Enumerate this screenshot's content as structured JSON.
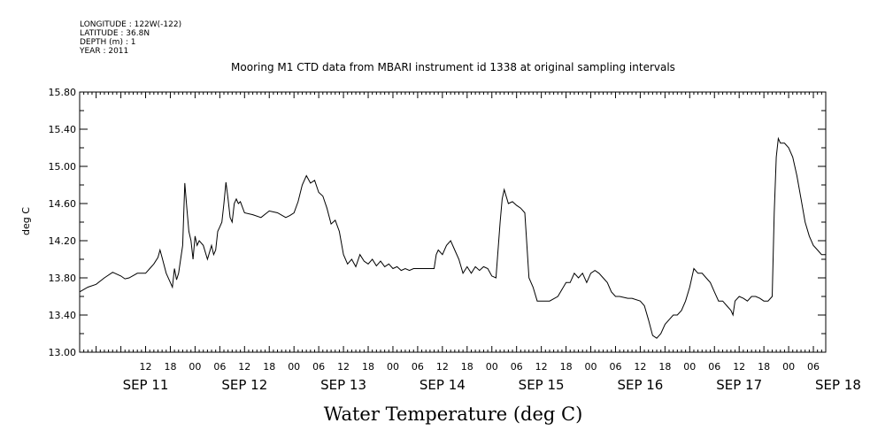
{
  "header": {
    "longitude": "LONGITUDE : 122W(-122)",
    "latitude": "LATITUDE : 36.8N",
    "depth": "DEPTH (m) : 1",
    "year": "YEAR : 2011"
  },
  "chart_data": {
    "type": "line",
    "title": "Mooring M1 CTD data from MBARI instrument id 1338 at original sampling intervals",
    "ylabel": "deg C",
    "xlabel": "Water Temperature (deg C)",
    "ylim": [
      13.0,
      15.8
    ],
    "xlim_hours": [
      -16,
      165
    ],
    "y_ticks": [
      "13.00",
      "13.40",
      "13.80",
      "14.20",
      "14.60",
      "15.00",
      "15.40",
      "15.80"
    ],
    "x_hour_labels": [
      "12",
      "18",
      "00",
      "06",
      "12",
      "18",
      "00",
      "06",
      "12",
      "18",
      "00",
      "06",
      "12",
      "18",
      "00",
      "06",
      "12",
      "18",
      "00",
      "06",
      "12",
      "18",
      "00",
      "06",
      "12",
      "18",
      "00",
      "06"
    ],
    "x_day_labels": [
      "SEP 11",
      "SEP 12",
      "SEP 13",
      "SEP 14",
      "SEP 15",
      "SEP 16",
      "SEP 17",
      "SEP 18"
    ],
    "x_time_origin": "2011-09-11 12:00",
    "grid": false,
    "series": [
      {
        "points": [
          [
            -16,
            13.65
          ],
          [
            -14,
            13.7
          ],
          [
            -12,
            13.73
          ],
          [
            -10,
            13.8
          ],
          [
            -8,
            13.86
          ],
          [
            -6,
            13.82
          ],
          [
            -5,
            13.79
          ],
          [
            -4,
            13.8
          ],
          [
            -2,
            13.85
          ],
          [
            0,
            13.85
          ],
          [
            1,
            13.9
          ],
          [
            2,
            13.95
          ],
          [
            3,
            14.02
          ],
          [
            3.5,
            14.1
          ],
          [
            4,
            14.02
          ],
          [
            5,
            13.85
          ],
          [
            6,
            13.75
          ],
          [
            6.5,
            13.7
          ],
          [
            7,
            13.9
          ],
          [
            7.5,
            13.78
          ],
          [
            8,
            13.85
          ],
          [
            8.5,
            14.0
          ],
          [
            9,
            14.15
          ],
          [
            9.5,
            14.82
          ],
          [
            10,
            14.55
          ],
          [
            10.5,
            14.3
          ],
          [
            11,
            14.2
          ],
          [
            11.5,
            14.0
          ],
          [
            12,
            14.25
          ],
          [
            12.5,
            14.15
          ],
          [
            13,
            14.2
          ],
          [
            14,
            14.15
          ],
          [
            15,
            14.0
          ],
          [
            16,
            14.15
          ],
          [
            16.5,
            14.05
          ],
          [
            17,
            14.1
          ],
          [
            17.5,
            14.3
          ],
          [
            18,
            14.35
          ],
          [
            18.5,
            14.4
          ],
          [
            19,
            14.6
          ],
          [
            19.5,
            14.83
          ],
          [
            20,
            14.65
          ],
          [
            20.5,
            14.45
          ],
          [
            21,
            14.4
          ],
          [
            21.5,
            14.6
          ],
          [
            22,
            14.65
          ],
          [
            22.5,
            14.6
          ],
          [
            23,
            14.62
          ],
          [
            24,
            14.5
          ],
          [
            26,
            14.48
          ],
          [
            28,
            14.45
          ],
          [
            30,
            14.52
          ],
          [
            32,
            14.5
          ],
          [
            34,
            14.45
          ],
          [
            35,
            14.47
          ],
          [
            36,
            14.5
          ],
          [
            37,
            14.62
          ],
          [
            38,
            14.8
          ],
          [
            39,
            14.9
          ],
          [
            40,
            14.82
          ],
          [
            41,
            14.85
          ],
          [
            42,
            14.72
          ],
          [
            43,
            14.68
          ],
          [
            44,
            14.55
          ],
          [
            45,
            14.38
          ],
          [
            46,
            14.42
          ],
          [
            47,
            14.3
          ],
          [
            48,
            14.05
          ],
          [
            49,
            13.95
          ],
          [
            50,
            14.0
          ],
          [
            51,
            13.92
          ],
          [
            52,
            14.05
          ],
          [
            53,
            13.98
          ],
          [
            54,
            13.95
          ],
          [
            55,
            14.0
          ],
          [
            56,
            13.93
          ],
          [
            57,
            13.98
          ],
          [
            58,
            13.92
          ],
          [
            59,
            13.95
          ],
          [
            60,
            13.9
          ],
          [
            61,
            13.92
          ],
          [
            62,
            13.88
          ],
          [
            63,
            13.9
          ],
          [
            64,
            13.88
          ],
          [
            65,
            13.9
          ],
          [
            67,
            13.9
          ],
          [
            69,
            13.9
          ],
          [
            70,
            13.9
          ],
          [
            70.5,
            14.05
          ],
          [
            71,
            14.1
          ],
          [
            72,
            14.05
          ],
          [
            73,
            14.15
          ],
          [
            74,
            14.2
          ],
          [
            75,
            14.1
          ],
          [
            76,
            14.0
          ],
          [
            77,
            13.85
          ],
          [
            78,
            13.92
          ],
          [
            79,
            13.85
          ],
          [
            80,
            13.92
          ],
          [
            81,
            13.88
          ],
          [
            82,
            13.92
          ],
          [
            83,
            13.9
          ],
          [
            84,
            13.82
          ],
          [
            85,
            13.8
          ],
          [
            86,
            14.4
          ],
          [
            86.5,
            14.65
          ],
          [
            87,
            14.75
          ],
          [
            88,
            14.6
          ],
          [
            89,
            14.62
          ],
          [
            90,
            14.58
          ],
          [
            91,
            14.55
          ],
          [
            92,
            14.5
          ],
          [
            93,
            13.8
          ],
          [
            94,
            13.7
          ],
          [
            95,
            13.55
          ],
          [
            96,
            13.55
          ],
          [
            98,
            13.55
          ],
          [
            100,
            13.6
          ],
          [
            102,
            13.75
          ],
          [
            103,
            13.75
          ],
          [
            104,
            13.85
          ],
          [
            105,
            13.8
          ],
          [
            106,
            13.85
          ],
          [
            107,
            13.75
          ],
          [
            108,
            13.85
          ],
          [
            109,
            13.88
          ],
          [
            110,
            13.85
          ],
          [
            111,
            13.8
          ],
          [
            112,
            13.75
          ],
          [
            113,
            13.65
          ],
          [
            114,
            13.6
          ],
          [
            115,
            13.6
          ],
          [
            117,
            13.58
          ],
          [
            118,
            13.58
          ],
          [
            120,
            13.55
          ],
          [
            121,
            13.5
          ],
          [
            122,
            13.35
          ],
          [
            123,
            13.18
          ],
          [
            124,
            13.15
          ],
          [
            125,
            13.2
          ],
          [
            126,
            13.3
          ],
          [
            127,
            13.35
          ],
          [
            128,
            13.4
          ],
          [
            129,
            13.4
          ],
          [
            130,
            13.45
          ],
          [
            131,
            13.55
          ],
          [
            132,
            13.7
          ],
          [
            133,
            13.9
          ],
          [
            134,
            13.85
          ],
          [
            135,
            13.85
          ],
          [
            136,
            13.8
          ],
          [
            137,
            13.75
          ],
          [
            138,
            13.65
          ],
          [
            139,
            13.55
          ],
          [
            140,
            13.55
          ],
          [
            141,
            13.5
          ],
          [
            142,
            13.45
          ],
          [
            142.5,
            13.4
          ],
          [
            143,
            13.55
          ],
          [
            144,
            13.6
          ],
          [
            145,
            13.58
          ],
          [
            146,
            13.55
          ],
          [
            147,
            13.6
          ],
          [
            148,
            13.6
          ],
          [
            149,
            13.58
          ],
          [
            150,
            13.55
          ],
          [
            151,
            13.55
          ],
          [
            152,
            13.6
          ],
          [
            152.5,
            14.5
          ],
          [
            153,
            15.1
          ],
          [
            153.5,
            15.3
          ],
          [
            154,
            15.25
          ],
          [
            155,
            15.25
          ],
          [
            156,
            15.2
          ],
          [
            157,
            15.1
          ],
          [
            158,
            14.9
          ],
          [
            159,
            14.65
          ],
          [
            160,
            14.4
          ],
          [
            161,
            14.25
          ],
          [
            162,
            14.15
          ],
          [
            163,
            14.1
          ],
          [
            164,
            14.05
          ],
          [
            165,
            14.05
          ]
        ]
      }
    ]
  }
}
